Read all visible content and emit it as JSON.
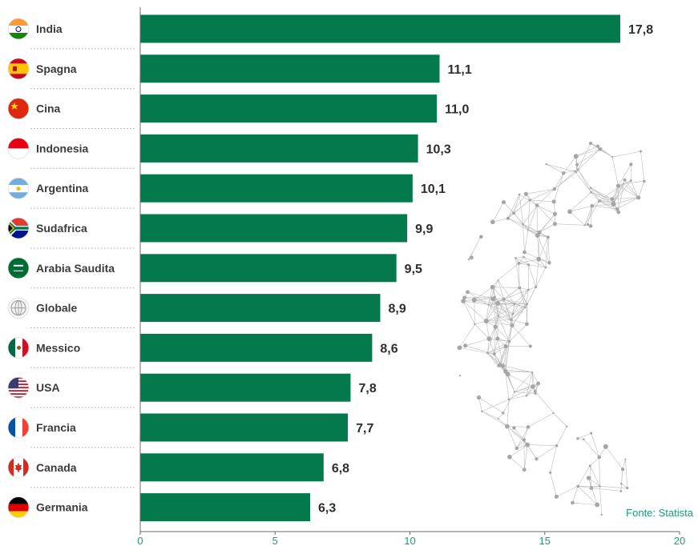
{
  "chart_data": {
    "type": "bar",
    "orientation": "horizontal",
    "categories": [
      "India",
      "Spagna",
      "Cina",
      "Indonesia",
      "Argentina",
      "Sudafrica",
      "Arabia Saudita",
      "Globale",
      "Messico",
      "USA",
      "Francia",
      "Canada",
      "Germania"
    ],
    "values": [
      17.8,
      11.1,
      11.0,
      10.3,
      10.1,
      9.9,
      9.5,
      8.9,
      8.6,
      7.8,
      7.7,
      6.8,
      6.3
    ],
    "value_labels": [
      "17,8",
      "11,1",
      "11,0",
      "10,3",
      "10,1",
      "9,9",
      "9,5",
      "8,9",
      "8,6",
      "7,8",
      "7,7",
      "6,8",
      "6,3"
    ],
    "xlim": [
      0,
      20
    ],
    "xticks": [
      0,
      5,
      10,
      15,
      20
    ],
    "grid": false,
    "bar_color": "#047a4c",
    "tick_color": "#1a9a7a",
    "flags": [
      "india-flag-icon",
      "spain-flag-icon",
      "china-flag-icon",
      "indonesia-flag-icon",
      "argentina-flag-icon",
      "south-africa-flag-icon",
      "saudi-arabia-flag-icon",
      "globe-icon",
      "mexico-flag-icon",
      "usa-flag-icon",
      "france-flag-icon",
      "canada-flag-icon",
      "germany-flag-icon"
    ]
  },
  "source": "Fonte: Statista"
}
